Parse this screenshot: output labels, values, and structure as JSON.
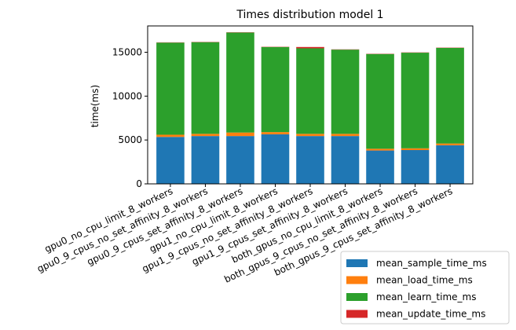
{
  "chart_data": {
    "type": "bar",
    "stacked": true,
    "title": "Times distribution model 1",
    "xlabel": "",
    "ylabel": "time(ms)",
    "ylim": [
      0,
      18000
    ],
    "yticks": [
      0,
      5000,
      10000,
      15000
    ],
    "categories": [
      "gpu0_no_cpu_limit_8_workers",
      "gpu0_9_cpus_no_set_affinity_8_workers",
      "gpu0_9_cpus_set_affinity_8_workers",
      "gpu1_no_cpu_limit_8_workers",
      "gpu1_9_cpus_no_set_affinity_8_workers",
      "gpu1_9_cpus_set_affinity_8_workers",
      "both_gpus_no_cpu_limit_8_workers",
      "both_gpus_9_cpus_no_set_affinity_8_workers",
      "both_gpus_9_cpus_set_affinity_8_workers"
    ],
    "series": [
      {
        "name": "mean_sample_time_ms",
        "color": "#1f77b4",
        "values": [
          5350,
          5450,
          5450,
          5650,
          5450,
          5450,
          3800,
          3850,
          4400
        ]
      },
      {
        "name": "mean_load_time_ms",
        "color": "#ff7f0e",
        "values": [
          250,
          250,
          400,
          250,
          250,
          250,
          200,
          200,
          200
        ]
      },
      {
        "name": "mean_learn_time_ms",
        "color": "#2ca02c",
        "values": [
          10500,
          10450,
          11400,
          9700,
          9750,
          9600,
          10800,
          10900,
          10900
        ]
      },
      {
        "name": "mean_update_time_ms",
        "color": "#d62728",
        "values": [
          30,
          30,
          30,
          30,
          150,
          30,
          30,
          30,
          30
        ]
      }
    ],
    "legend_position": "lower-right-outside",
    "grid": false
  }
}
